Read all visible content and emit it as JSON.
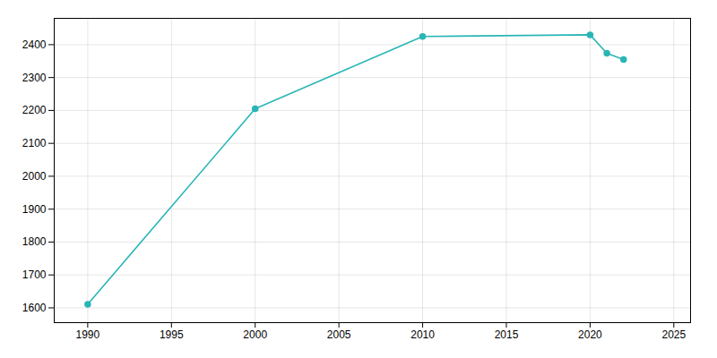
{
  "chart_data": {
    "type": "line",
    "x": [
      1990,
      2000,
      2010,
      2020,
      2021,
      2022
    ],
    "values": [
      1611,
      2205,
      2425,
      2430,
      2374,
      2355
    ],
    "color": "#2ab5b5",
    "marker": "circle",
    "xlim": [
      1988,
      2026
    ],
    "ylim": [
      1555,
      2480
    ],
    "xticks": [
      1990,
      1995,
      2000,
      2005,
      2010,
      2015,
      2020,
      2025
    ],
    "yticks": [
      1600,
      1700,
      1800,
      1900,
      2000,
      2100,
      2200,
      2300,
      2400
    ],
    "grid": true
  }
}
